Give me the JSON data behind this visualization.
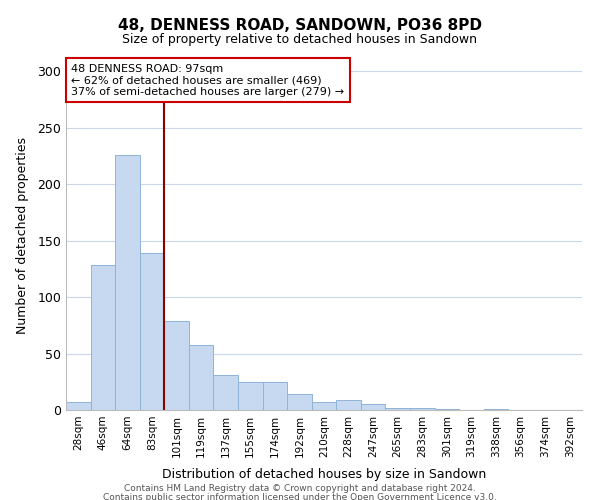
{
  "title": "48, DENNESS ROAD, SANDOWN, PO36 8PD",
  "subtitle": "Size of property relative to detached houses in Sandown",
  "xlabel": "Distribution of detached houses by size in Sandown",
  "ylabel": "Number of detached properties",
  "bar_labels": [
    "28sqm",
    "46sqm",
    "64sqm",
    "83sqm",
    "101sqm",
    "119sqm",
    "137sqm",
    "155sqm",
    "174sqm",
    "192sqm",
    "210sqm",
    "228sqm",
    "247sqm",
    "265sqm",
    "283sqm",
    "301sqm",
    "319sqm",
    "338sqm",
    "356sqm",
    "374sqm",
    "392sqm"
  ],
  "bar_values": [
    7,
    128,
    226,
    139,
    79,
    58,
    31,
    25,
    25,
    14,
    7,
    9,
    5,
    2,
    2,
    1,
    0,
    1,
    0,
    0,
    0
  ],
  "bar_color": "#c6d9f0",
  "bar_edge_color": "#8eb4d8",
  "vline_color": "#8b0000",
  "annotation_title": "48 DENNESS ROAD: 97sqm",
  "annotation_line1": "← 62% of detached houses are smaller (469)",
  "annotation_line2": "37% of semi-detached houses are larger (279) →",
  "annotation_box_color": "#ffffff",
  "annotation_box_edge": "#cc0000",
  "ylim": [
    0,
    310
  ],
  "yticks": [
    0,
    50,
    100,
    150,
    200,
    250,
    300
  ],
  "footer1": "Contains HM Land Registry data © Crown copyright and database right 2024.",
  "footer2": "Contains public sector information licensed under the Open Government Licence v3.0.",
  "background_color": "#ffffff",
  "grid_color": "#c8d8ea"
}
